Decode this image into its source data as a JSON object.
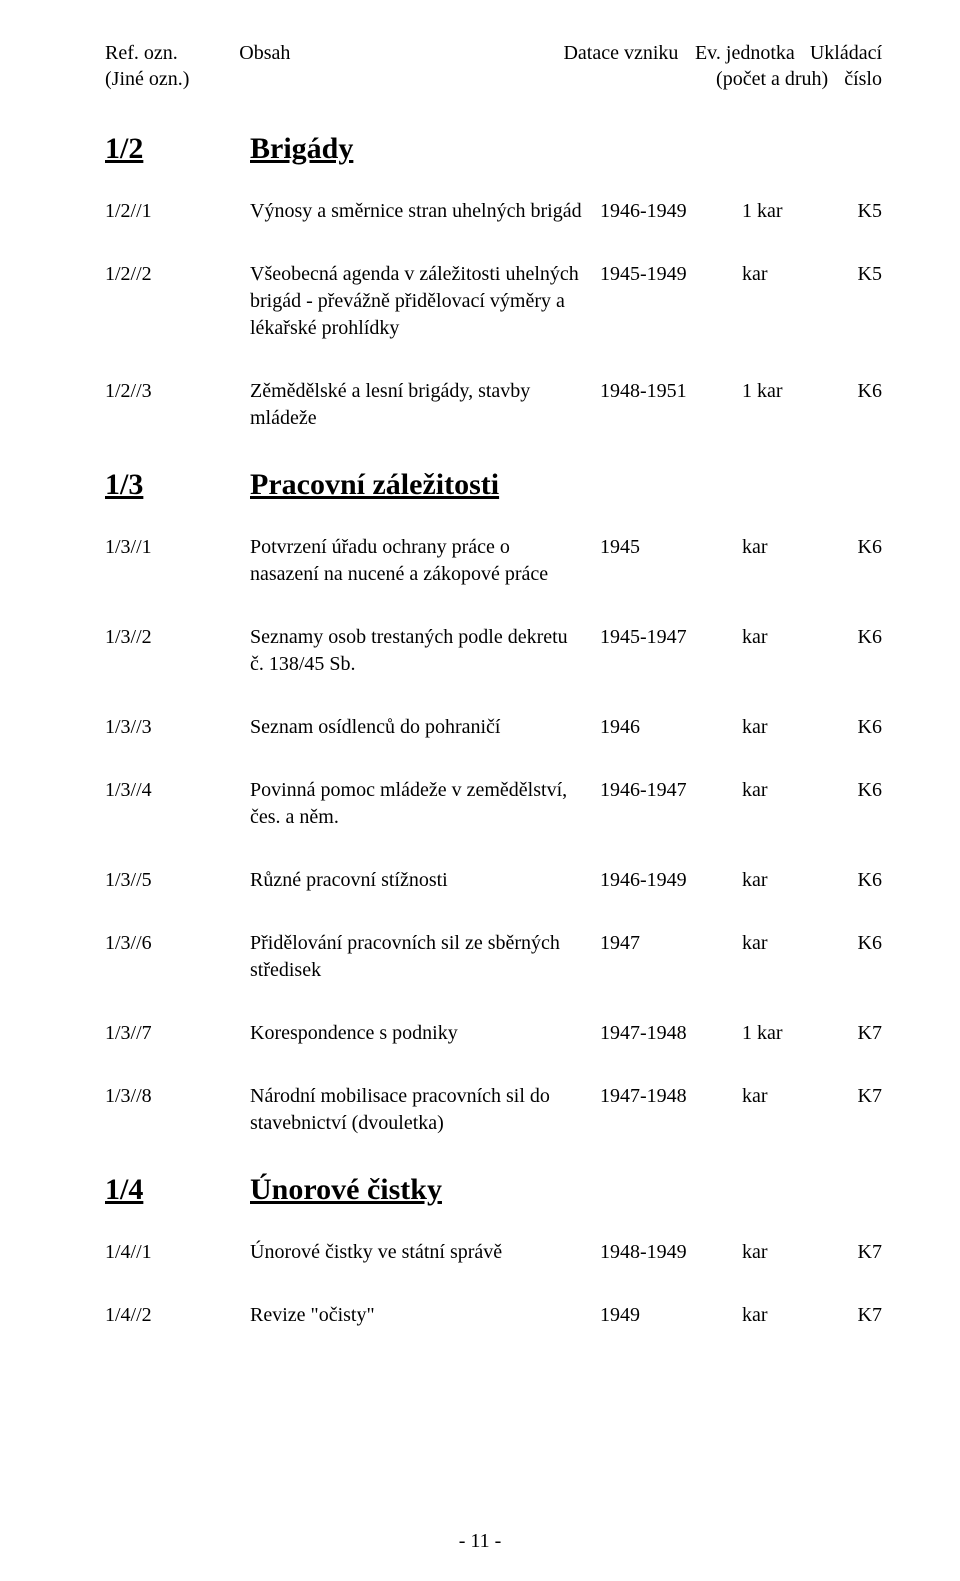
{
  "header": {
    "ref": "Ref. ozn.",
    "ref2": "(Jiné ozn.)",
    "obsah": "Obsah",
    "datace": "Datace vzniku",
    "ev": "Ev. jednotka",
    "ev2": "(počet a druh)",
    "ukl": "Ukládací",
    "ukl2": "číslo"
  },
  "sections": {
    "s1": {
      "ref": "1/2",
      "title": "Brigády"
    },
    "s2": {
      "ref": "1/3",
      "title": "Pracovní záležitosti"
    },
    "s3": {
      "ref": "1/4",
      "title": "Únorové čistky"
    }
  },
  "entries": {
    "e1": {
      "ref": "1/2//1",
      "content": "Výnosy a směrnice stran uhelných brigád",
      "date": "1946-1949",
      "ev": "1 kar",
      "ukl": "K5"
    },
    "e2": {
      "ref": "1/2//2",
      "content": "Všeobecná agenda v záležitosti uhelných brigád - převážně přidělovací výměry a lékařské prohlídky",
      "date": "1945-1949",
      "ev": "kar",
      "ukl": "K5"
    },
    "e3": {
      "ref": "1/2//3",
      "content": "Zěmědělské a lesní brigády, stavby mládeže",
      "date": "1948-1951",
      "ev": "1 kar",
      "ukl": "K6"
    },
    "e4": {
      "ref": "1/3//1",
      "content": "Potvrzení úřadu ochrany práce o nasazení na nucené a zákopové práce",
      "date": "1945",
      "ev": "kar",
      "ukl": "K6"
    },
    "e5": {
      "ref": "1/3//2",
      "content": "Seznamy osob trestaných podle dekretu č. 138/45 Sb.",
      "date": "1945-1947",
      "ev": "kar",
      "ukl": "K6"
    },
    "e6": {
      "ref": "1/3//3",
      "content": "Seznam osídlenců do pohraničí",
      "date": "1946",
      "ev": "kar",
      "ukl": "K6"
    },
    "e7": {
      "ref": "1/3//4",
      "content": "Povinná pomoc mládeže v zemědělství, čes. a něm.",
      "date": "1946-1947",
      "ev": "kar",
      "ukl": "K6"
    },
    "e8": {
      "ref": "1/3//5",
      "content": "Různé pracovní stížnosti",
      "date": "1946-1949",
      "ev": "kar",
      "ukl": "K6"
    },
    "e9": {
      "ref": "1/3//6",
      "content": "Přidělování pracovních sil ze sběrných středisek",
      "date": "1947",
      "ev": "kar",
      "ukl": "K6"
    },
    "e10": {
      "ref": "1/3//7",
      "content": "Korespondence s podniky",
      "date": "1947-1948",
      "ev": "1 kar",
      "ukl": "K7"
    },
    "e11": {
      "ref": "1/3//8",
      "content": "Národní mobilisace pracovních sil do stavebnictví (dvouletka)",
      "date": "1947-1948",
      "ev": "kar",
      "ukl": "K7"
    },
    "e12": {
      "ref": "1/4//1",
      "content": "Únorové čistky ve státní správě",
      "date": "1948-1949",
      "ev": "kar",
      "ukl": "K7"
    },
    "e13": {
      "ref": "1/4//2",
      "content": "Revize \"očisty\"",
      "date": "1949",
      "ev": "kar",
      "ukl": "K7"
    }
  },
  "pageNumber": "- 11 -"
}
